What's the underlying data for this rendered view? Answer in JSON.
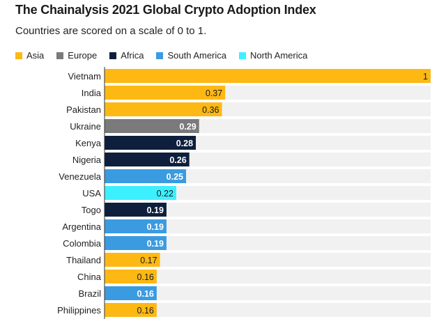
{
  "chart_data": {
    "type": "bar",
    "orientation": "horizontal",
    "title": "The Chainalysis 2021 Global Crypto Adoption Index",
    "subtitle": "Countries are scored on a scale of 0 to 1.",
    "xlabel": "",
    "ylabel": "",
    "xlim": [
      0,
      1
    ],
    "legend": [
      {
        "name": "Asia",
        "color": "#fdb813"
      },
      {
        "name": "Europe",
        "color": "#7a7a7a"
      },
      {
        "name": "Africa",
        "color": "#0d1f3c"
      },
      {
        "name": "South America",
        "color": "#3b9be0"
      },
      {
        "name": "North America",
        "color": "#3df0ff"
      }
    ],
    "bars": [
      {
        "category": "Vietnam",
        "value": 1,
        "label": "1",
        "group": "Asia"
      },
      {
        "category": "India",
        "value": 0.37,
        "label": "0.37",
        "group": "Asia"
      },
      {
        "category": "Pakistan",
        "value": 0.36,
        "label": "0.36",
        "group": "Asia"
      },
      {
        "category": "Ukraine",
        "value": 0.29,
        "label": "0.29",
        "group": "Europe"
      },
      {
        "category": "Kenya",
        "value": 0.28,
        "label": "0.28",
        "group": "Africa"
      },
      {
        "category": "Nigeria",
        "value": 0.26,
        "label": "0.26",
        "group": "Africa"
      },
      {
        "category": "Venezuela",
        "value": 0.25,
        "label": "0.25",
        "group": "South America"
      },
      {
        "category": "USA",
        "value": 0.22,
        "label": "0.22",
        "group": "North America"
      },
      {
        "category": "Togo",
        "value": 0.19,
        "label": "0.19",
        "group": "Africa"
      },
      {
        "category": "Argentina",
        "value": 0.19,
        "label": "0.19",
        "group": "South America"
      },
      {
        "category": "Colombia",
        "value": 0.19,
        "label": "0.19",
        "group": "South America"
      },
      {
        "category": "Thailand",
        "value": 0.17,
        "label": "0.17",
        "group": "Asia"
      },
      {
        "category": "China",
        "value": 0.16,
        "label": "0.16",
        "group": "Asia"
      },
      {
        "category": "Brazil",
        "value": 0.16,
        "label": "0.16",
        "group": "South America"
      },
      {
        "category": "Philippines",
        "value": 0.16,
        "label": "0.16",
        "group": "Asia"
      }
    ]
  }
}
